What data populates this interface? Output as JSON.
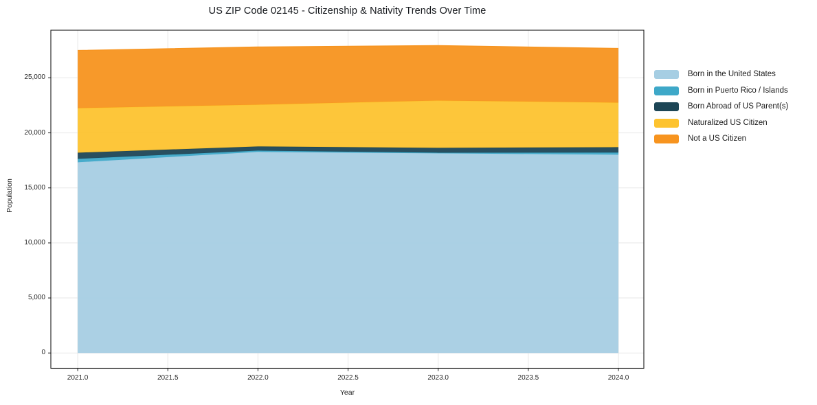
{
  "chart_data": {
    "type": "area",
    "stacked": true,
    "title": "US ZIP Code 02145 - Citizenship & Nativity Trends Over Time",
    "xlabel": "Year",
    "ylabel": "Population",
    "x": [
      2021,
      2022,
      2023,
      2024
    ],
    "series": [
      {
        "name": "Born in the United States",
        "color": "#a6cee3",
        "values": [
          17330,
          18270,
          18140,
          18020
        ]
      },
      {
        "name": "Born in Puerto Rico / Islands",
        "color": "#3ea8c8",
        "values": [
          310,
          120,
          60,
          190
        ]
      },
      {
        "name": "Born Abroad of US Parent(s)",
        "color": "#1d4656",
        "values": [
          560,
          375,
          440,
          490
        ]
      },
      {
        "name": "Naturalized US Citizen",
        "color": "#fdc32f",
        "values": [
          4050,
          3800,
          4300,
          4050
        ]
      },
      {
        "name": "Not a US Citizen",
        "color": "#f7941f",
        "values": [
          5240,
          5240,
          4990,
          4925
        ]
      }
    ],
    "x_ticks": [
      {
        "value": 2021.0,
        "label": "2021.0"
      },
      {
        "value": 2021.5,
        "label": "2021.5"
      },
      {
        "value": 2022.0,
        "label": "2022.0"
      },
      {
        "value": 2022.5,
        "label": "2022.5"
      },
      {
        "value": 2023.0,
        "label": "2023.0"
      },
      {
        "value": 2023.5,
        "label": "2023.5"
      },
      {
        "value": 2024.0,
        "label": "2024.0"
      }
    ],
    "y_ticks": [
      {
        "value": 0,
        "label": "0"
      },
      {
        "value": 5000,
        "label": "5,000"
      },
      {
        "value": 10000,
        "label": "10,000"
      },
      {
        "value": 15000,
        "label": "15,000"
      },
      {
        "value": 20000,
        "label": "20,000"
      },
      {
        "value": 25000,
        "label": "25,000"
      }
    ],
    "xlim": [
      2020.851,
      2024.141
    ],
    "ylim": [
      -1390,
      29330
    ],
    "grid": true,
    "legend_position": "right",
    "fill_opacity": 0.95
  },
  "style": {
    "background": "#ffffff",
    "grid_color": "#e7e7e7",
    "spine_color": "#1a1a1a",
    "text_color": "#262626"
  }
}
